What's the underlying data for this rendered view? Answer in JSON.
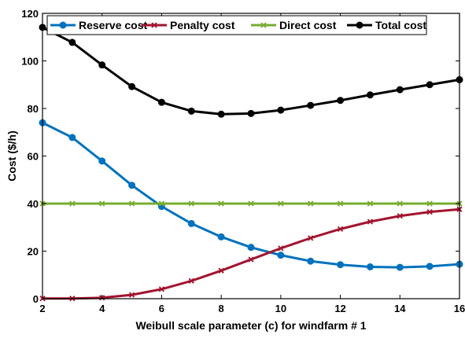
{
  "chart_data": {
    "type": "line",
    "xlabel": "Weibull scale parameter (c) for windfarm # 1",
    "ylabel": "Cost ($/h)",
    "xlim": [
      2,
      16
    ],
    "ylim": [
      0,
      120
    ],
    "xticks": [
      2,
      4,
      6,
      8,
      10,
      12,
      14,
      16
    ],
    "yticks": [
      0,
      20,
      40,
      60,
      80,
      100,
      120
    ],
    "grid": false,
    "legend_position": "top",
    "x": [
      2,
      3,
      4,
      5,
      6,
      7,
      8,
      9,
      10,
      11,
      12,
      13,
      14,
      15,
      16
    ],
    "series": [
      {
        "name": "Reserve cost",
        "color": "#0072BD",
        "marker": "circle",
        "values": [
          74.0,
          67.8,
          57.9,
          47.7,
          38.8,
          31.6,
          26.0,
          21.6,
          18.3,
          15.8,
          14.3,
          13.4,
          13.2,
          13.6,
          14.5
        ]
      },
      {
        "name": "Penalty cost",
        "color": "#A2142F",
        "marker": "x",
        "values": [
          0.1,
          0.1,
          0.4,
          1.6,
          4.0,
          7.5,
          11.8,
          16.5,
          21.2,
          25.5,
          29.3,
          32.4,
          34.8,
          36.5,
          37.6
        ]
      },
      {
        "name": "Direct cost",
        "color": "#77AC30",
        "marker": "x",
        "values": [
          40,
          40,
          40,
          40,
          40,
          40,
          40,
          40,
          40,
          40,
          40,
          40,
          40,
          40,
          40
        ]
      },
      {
        "name": "Total cost",
        "color": "#000000",
        "marker": "circle",
        "values": [
          114.1,
          107.8,
          98.3,
          89.2,
          82.6,
          78.9,
          77.6,
          77.9,
          79.3,
          81.3,
          83.4,
          85.7,
          87.9,
          90.0,
          92.1
        ]
      }
    ]
  }
}
